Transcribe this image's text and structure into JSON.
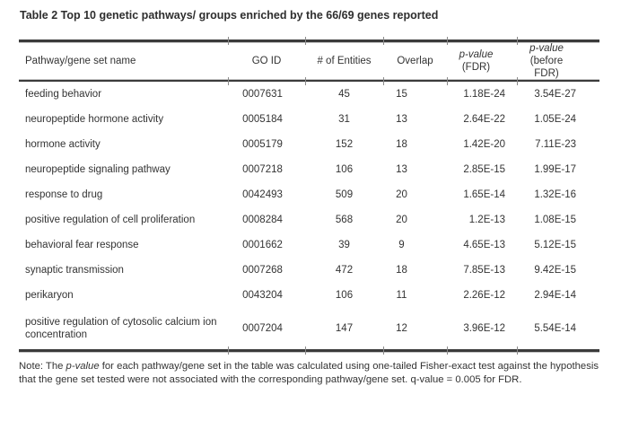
{
  "title": "Table 2 Top 10 genetic pathways/ groups enriched by the 66/69 genes reported",
  "table": {
    "headers": {
      "name": "Pathway/gene set name",
      "go_id": "GO ID",
      "entities": "# of Entities",
      "overlap": "Overlap",
      "p_fdr": {
        "line1": "p-value",
        "line2": "(FDR)"
      },
      "p_before": {
        "line1": "p-value",
        "line2": "(before FDR)"
      }
    },
    "rows": [
      {
        "name": "feeding behavior",
        "go_id": "0007631",
        "entities": "45",
        "overlap": "15",
        "p_fdr": "1.18E-24",
        "p_before": "3.54E-27"
      },
      {
        "name": "neuropeptide hormone activity",
        "go_id": "0005184",
        "entities": "31",
        "overlap": "13",
        "p_fdr": "2.64E-22",
        "p_before": "1.05E-24"
      },
      {
        "name": "hormone activity",
        "go_id": "0005179",
        "entities": "152",
        "overlap": "18",
        "p_fdr": "1.42E-20",
        "p_before": "7.11E-23"
      },
      {
        "name": "neuropeptide signaling pathway",
        "go_id": "0007218",
        "entities": "106",
        "overlap": "13",
        "p_fdr": "2.85E-15",
        "p_before": "1.99E-17"
      },
      {
        "name": "response to drug",
        "go_id": "0042493",
        "entities": "509",
        "overlap": "20",
        "p_fdr": "1.65E-14",
        "p_before": "1.32E-16"
      },
      {
        "name": "positive regulation of cell proliferation",
        "go_id": "0008284",
        "entities": "568",
        "overlap": "20",
        "p_fdr": "1.2E-13",
        "p_before": "1.08E-15"
      },
      {
        "name": "behavioral fear response",
        "go_id": "0001662",
        "entities": "39",
        "overlap": "9",
        "p_fdr": "4.65E-13",
        "p_before": "5.12E-15"
      },
      {
        "name": "synaptic transmission",
        "go_id": "0007268",
        "entities": "472",
        "overlap": "18",
        "p_fdr": "7.85E-13",
        "p_before": "9.42E-15"
      },
      {
        "name": "perikaryon",
        "go_id": "0043204",
        "entities": "106",
        "overlap": "11",
        "p_fdr": "2.26E-12",
        "p_before": "2.94E-14"
      },
      {
        "name": "positive regulation of cytosolic calcium ion concentration",
        "go_id": "0007204",
        "entities": "147",
        "overlap": "12",
        "p_fdr": "3.96E-12",
        "p_before": "5.54E-14"
      }
    ]
  },
  "note": {
    "prefix": "Note: The ",
    "italic_term": "p-value",
    "suffix": " for each pathway/gene set in the table was calculated using one-tailed Fisher-exact test against the hypothesis that the gene set tested were not associated with the corresponding pathway/gene set. q-value = 0.005 for FDR."
  },
  "colors": {
    "text": "#333333",
    "rule": "#3b3b3b",
    "tick": "#8a8a8a",
    "background": "#ffffff"
  }
}
